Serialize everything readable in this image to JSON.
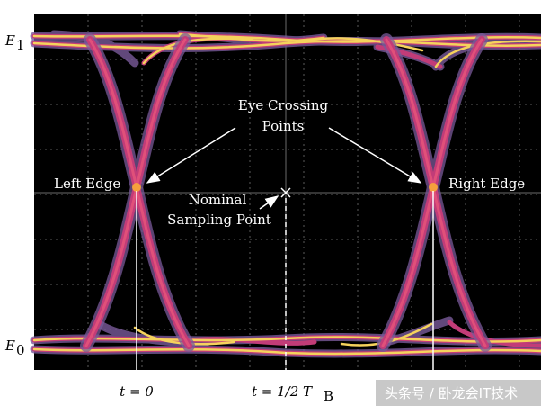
{
  "levels": {
    "e1": "E",
    "e1_sub": "1",
    "e0": "E",
    "e0_sub": "0"
  },
  "annotations": {
    "crossing_line1": "Eye Crossing",
    "crossing_line2": "Points",
    "left_edge": "Left Edge",
    "right_edge": "Right Edge",
    "nominal_line1": "Nominal",
    "nominal_line2": "Sampling Point"
  },
  "time_labels": {
    "t0": "t = 0",
    "half_prefix": "t = 1/2 T",
    "half_sub": "B"
  },
  "watermark": "头条号 / 卧龙会IT技术",
  "colors": {
    "background": "#000000",
    "trace_outer": "#7a5a9a",
    "trace_mid": "#c23c78",
    "trace_core": "#f5d25c"
  }
}
